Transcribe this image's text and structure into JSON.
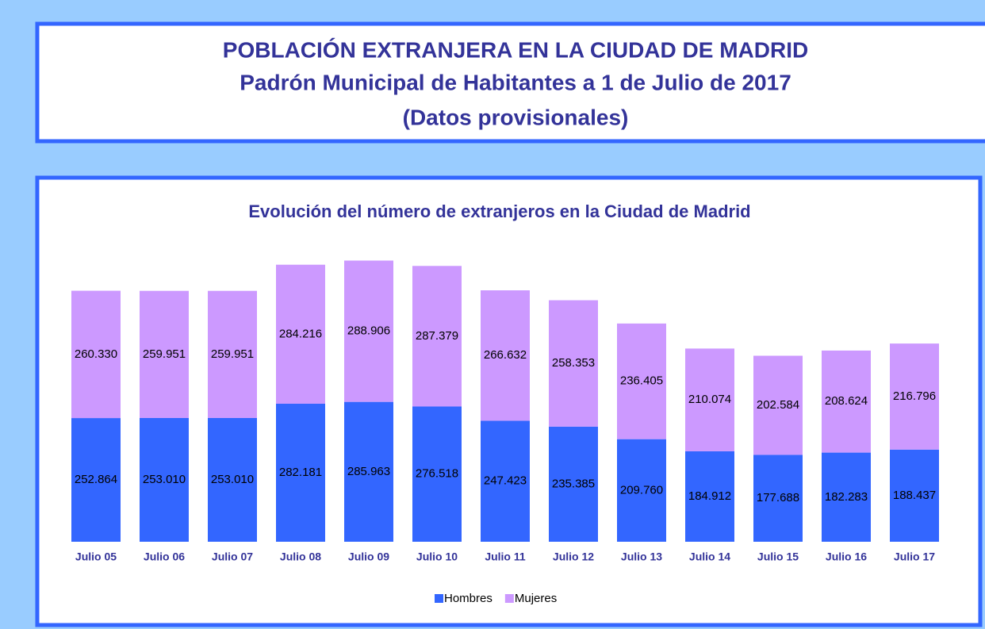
{
  "header": {
    "title": "POBLACIÓN EXTRANJERA EN LA CIUDAD DE MADRID",
    "subtitle": "Padrón Municipal de Habitantes a 1 de Julio de 2017",
    "note": "(Datos provisionales)"
  },
  "chart_data": {
    "type": "stacked_bar",
    "title": "Evolución del número de extranjeros en la Ciudad de Madrid",
    "categories": [
      "Julio 05",
      "Julio 06",
      "Julio 07",
      "Julio 08",
      "Julio 09",
      "Julio 10",
      "Julio 11",
      "Julio 12",
      "Julio 13",
      "Julio 14",
      "Julio 15",
      "Julio 16",
      "Julio 17"
    ],
    "series": [
      {
        "name": "Hombres",
        "color": "#3366ff",
        "values": [
          252864,
          253010,
          253010,
          282181,
          285963,
          276518,
          247423,
          235385,
          209760,
          184912,
          177688,
          182283,
          188437
        ],
        "value_labels": [
          "252.864",
          "253.010",
          "253.010",
          "282.181",
          "285.963",
          "276.518",
          "247.423",
          "235.385",
          "209.760",
          "184.912",
          "177.688",
          "182.283",
          "188.437"
        ]
      },
      {
        "name": "Mujeres",
        "color": "#cc99ff",
        "values": [
          260330,
          259951,
          259951,
          284216,
          288906,
          287379,
          266632,
          258353,
          236405,
          210074,
          202584,
          208624,
          216796
        ],
        "value_labels": [
          "260.330",
          "259.951",
          "259.951",
          "284.216",
          "288.906",
          "287.379",
          "266.632",
          "258.353",
          "236.405",
          "210.074",
          "202.584",
          "208.624",
          "216.796"
        ]
      }
    ],
    "ylim": [
      0,
      600000
    ],
    "legend": "bottom"
  }
}
